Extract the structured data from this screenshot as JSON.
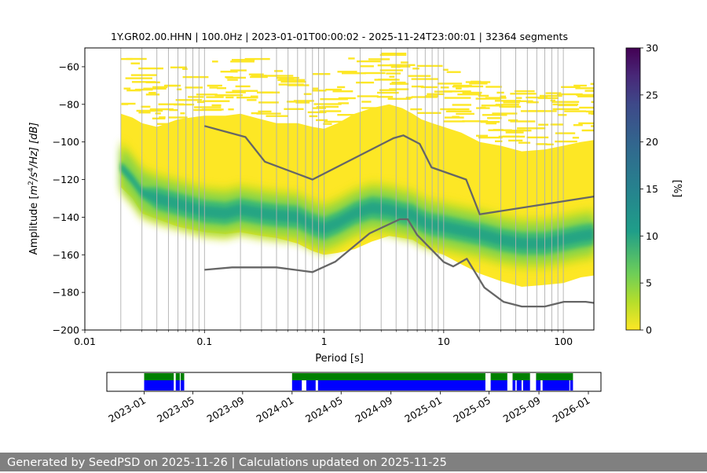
{
  "chart_data": {
    "type": "heatmap",
    "title": "1Y.GR02.00.HHN | 100.0Hz | 2023-01-01T00:00:02 - 2025-11-24T23:00:01 | 32364 segments",
    "xlabel": "Period [s]",
    "ylabel_parts": {
      "prefix": "Amplitude [",
      "m": "m",
      "sup2": "2",
      "slash_s": "/s",
      "sup4": "4",
      "hz": "/Hz] [dB]"
    },
    "x_scale": "log",
    "xlim": [
      0.01,
      180
    ],
    "ylim": [
      -200,
      -50
    ],
    "x_ticks": [
      {
        "value": 0.01,
        "label": "0.01"
      },
      {
        "value": 0.1,
        "label": "0.1"
      },
      {
        "value": 1,
        "label": "1"
      },
      {
        "value": 10,
        "label": "10"
      },
      {
        "value": 100,
        "label": "100"
      }
    ],
    "y_ticks": [
      {
        "value": -60,
        "label": "−60"
      },
      {
        "value": -80,
        "label": "−80"
      },
      {
        "value": -100,
        "label": "−100"
      },
      {
        "value": -120,
        "label": "−120"
      },
      {
        "value": -140,
        "label": "−140"
      },
      {
        "value": -160,
        "label": "−160"
      },
      {
        "value": -180,
        "label": "−180"
      },
      {
        "value": -200,
        "label": "−200"
      }
    ],
    "grid_periods": [
      0.02,
      0.03,
      0.04,
      0.05,
      0.06,
      0.07,
      0.08,
      0.09,
      0.1,
      0.2,
      0.3,
      0.4,
      0.5,
      0.6,
      0.7,
      0.8,
      0.9,
      1,
      2,
      3,
      4,
      5,
      6,
      7,
      8,
      9,
      10,
      20,
      30,
      40,
      50,
      60,
      70,
      80,
      90,
      100
    ],
    "series": [
      {
        "name": "psd-mode",
        "description": "most frequent PSD level per period (density ridge)",
        "periods": [
          0.02,
          0.025,
          0.03,
          0.04,
          0.06,
          0.1,
          0.15,
          0.2,
          0.3,
          0.4,
          0.6,
          0.8,
          1.0,
          1.3,
          1.8,
          2.5,
          3.5,
          4.5,
          5.5,
          6.5,
          8,
          10,
          14,
          20,
          30,
          45,
          70,
          100,
          140,
          180
        ],
        "values": [
          -113,
          -120,
          -127,
          -130,
          -133,
          -137,
          -138,
          -136,
          -138,
          -139,
          -140,
          -144,
          -146,
          -143,
          -138,
          -135,
          -136,
          -138,
          -139,
          -142,
          -144,
          -145,
          -147,
          -149,
          -152,
          -154,
          -154,
          -152,
          -150,
          -149
        ],
        "lower": [
          -124,
          -130,
          -138,
          -141,
          -145,
          -148,
          -149,
          -148,
          -150,
          -151,
          -154,
          -158,
          -160,
          -159,
          -157,
          -153,
          -150,
          -151,
          -152,
          -155,
          -158,
          -160,
          -165,
          -170,
          -174,
          -177,
          -176,
          -175,
          -172,
          -171
        ],
        "upper": [
          -85,
          -87,
          -90,
          -92,
          -88,
          -86,
          -86,
          -85,
          -88,
          -90,
          -90,
          -92,
          -93,
          -90,
          -85,
          -82,
          -80,
          -82,
          -85,
          -88,
          -90,
          -92,
          -95,
          -100,
          -102,
          -105,
          -104,
          -102,
          -100,
          -99
        ]
      },
      {
        "name": "nhnm",
        "description": "New High Noise Model",
        "periods": [
          0.1,
          0.22,
          0.32,
          0.8,
          3.8,
          4.6,
          6.3,
          7.9,
          15.4,
          20,
          180
        ],
        "values": [
          -91.5,
          -97.4,
          -110.5,
          -120,
          -98,
          -96.5,
          -101,
          -113.5,
          -120,
          -138.5,
          -129
        ]
      },
      {
        "name": "nlnm",
        "description": "New Low Noise Model",
        "periods": [
          0.1,
          0.17,
          0.4,
          0.8,
          1.24,
          2.4,
          4.3,
          5.0,
          6.0,
          10.0,
          12.0,
          15.6,
          21.9,
          31.6,
          45,
          70,
          101,
          154,
          180
        ],
        "values": [
          -168,
          -166.7,
          -166.7,
          -169.2,
          -163.7,
          -148.6,
          -141.1,
          -141.1,
          -149.5,
          -163.8,
          -166.2,
          -162.1,
          -177.5,
          -185,
          -187.5,
          -187.5,
          -185,
          -185,
          -185.6
        ]
      }
    ],
    "colorbar": {
      "label": "[%]",
      "range": [
        0,
        30
      ],
      "colormap": "viridis",
      "ticks": [
        {
          "value": 0,
          "label": "0"
        },
        {
          "value": 5,
          "label": "5"
        },
        {
          "value": 10,
          "label": "10"
        },
        {
          "value": 15,
          "label": "15"
        },
        {
          "value": 20,
          "label": "20"
        },
        {
          "value": 25,
          "label": "25"
        },
        {
          "value": 30,
          "label": "30"
        }
      ],
      "colors": [
        "#fde725",
        "#5ec962",
        "#21918c",
        "#3b528b",
        "#440154"
      ]
    },
    "availability": {
      "time_range": [
        "2022-10-01",
        "2026-02-01"
      ],
      "color_computed": "#0000ff",
      "color_data": "#008000",
      "ticks": [
        {
          "date": "2023-01-01",
          "label": "2023-01"
        },
        {
          "date": "2023-05-01",
          "label": "2023-05"
        },
        {
          "date": "2023-09-01",
          "label": "2023-09"
        },
        {
          "date": "2024-01-01",
          "label": "2024-01"
        },
        {
          "date": "2024-05-01",
          "label": "2024-05"
        },
        {
          "date": "2024-09-01",
          "label": "2024-09"
        },
        {
          "date": "2025-01-01",
          "label": "2025-01"
        },
        {
          "date": "2025-05-01",
          "label": "2025-05"
        },
        {
          "date": "2025-09-01",
          "label": "2025-09"
        },
        {
          "date": "2026-01-01",
          "label": "2026-01"
        }
      ],
      "data_ranges": [
        [
          "2023-01-01",
          "2023-03-15"
        ],
        [
          "2023-03-20",
          "2023-03-30"
        ],
        [
          "2023-04-01",
          "2023-04-10"
        ],
        [
          "2024-01-01",
          "2025-04-22"
        ],
        [
          "2025-05-05",
          "2025-06-15"
        ],
        [
          "2025-06-28",
          "2025-08-10"
        ],
        [
          "2025-08-25",
          "2025-11-24"
        ]
      ],
      "computed_ranges": [
        [
          "2023-01-01",
          "2023-03-15"
        ],
        [
          "2023-03-20",
          "2023-03-30"
        ],
        [
          "2023-04-01",
          "2023-04-10"
        ],
        [
          "2024-01-01",
          "2024-01-25"
        ],
        [
          "2024-02-05",
          "2024-02-28"
        ],
        [
          "2024-03-05",
          "2025-04-22"
        ],
        [
          "2025-05-05",
          "2025-06-15"
        ],
        [
          "2025-06-28",
          "2025-07-05"
        ],
        [
          "2025-07-08",
          "2025-07-20"
        ],
        [
          "2025-07-24",
          "2025-08-10"
        ],
        [
          "2025-08-25",
          "2025-09-05"
        ],
        [
          "2025-09-10",
          "2025-11-15"
        ],
        [
          "2025-11-17",
          "2025-11-24"
        ]
      ]
    }
  },
  "footer": {
    "text": "Generated by SeedPSD on 2025-11-26 | Calculations updated on 2025-11-25"
  }
}
